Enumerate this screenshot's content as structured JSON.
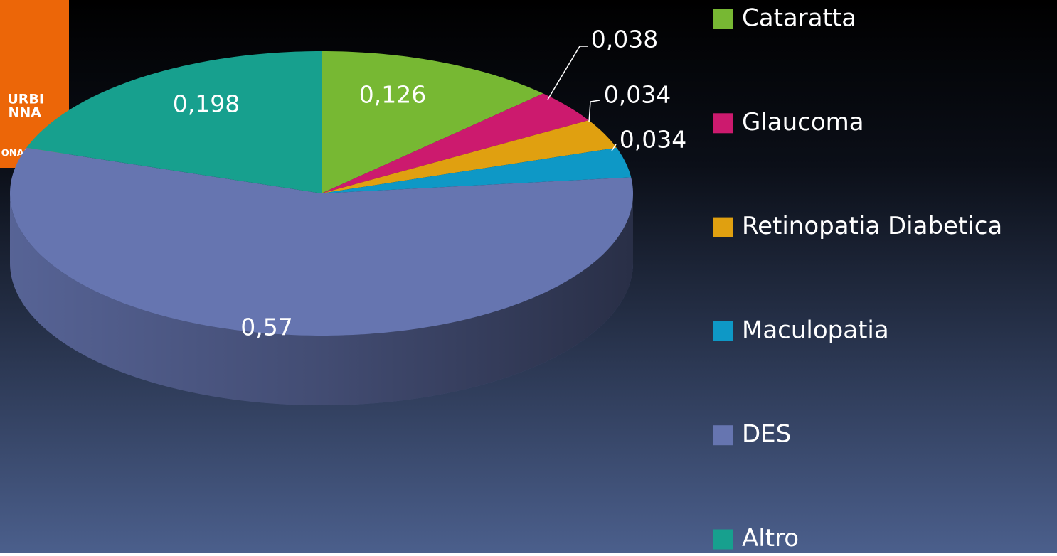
{
  "logo_text": [
    "URBI",
    "NNA",
    "ONAL"
  ],
  "chart_data": {
    "type": "pie3d",
    "categories": [
      "Cataratta",
      "Glaucoma",
      "Retinopatia Diabetica",
      "Maculopatia",
      "DES",
      "Altro"
    ],
    "values": [
      0.126,
      0.038,
      0.034,
      0.034,
      0.57,
      0.198
    ],
    "value_labels": [
      "0,126",
      "0,038",
      "0,034",
      "0,034",
      "0,57",
      "0,198"
    ],
    "colors": [
      "#77b833",
      "#cc1a6e",
      "#e0a010",
      "#0e98c6",
      "#6675b0",
      "#17a08e"
    ],
    "legend": "right"
  }
}
